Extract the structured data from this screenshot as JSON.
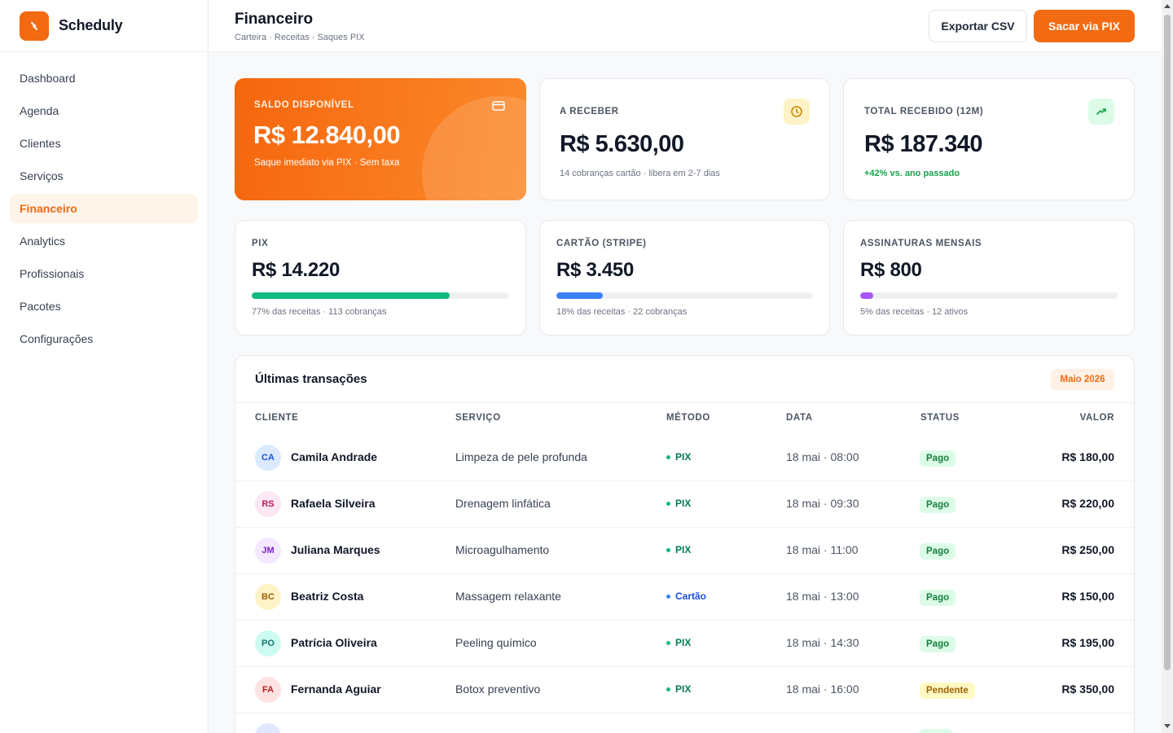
{
  "brand": {
    "name": "Scheduly"
  },
  "sidebar": {
    "items": [
      {
        "label": "Dashboard",
        "active": false
      },
      {
        "label": "Agenda",
        "active": false
      },
      {
        "label": "Clientes",
        "active": false
      },
      {
        "label": "Serviços",
        "active": false
      },
      {
        "label": "Financeiro",
        "active": true
      },
      {
        "label": "Analytics",
        "active": false
      },
      {
        "label": "Profissionais",
        "active": false
      },
      {
        "label": "Pacotes",
        "active": false
      },
      {
        "label": "Configurações",
        "active": false
      }
    ]
  },
  "header": {
    "title": "Financeiro",
    "subtitle": "Carteira · Receitas · Saques PIX",
    "export_label": "Exportar CSV",
    "withdraw_label": "Sacar via PIX"
  },
  "balance": {
    "label": "Saldo disponível",
    "value": "R$ 12.840,00",
    "note": "Saque imediato via PIX · Sem taxa"
  },
  "receivable": {
    "label": "A receber",
    "value": "R$ 5.630,00",
    "note": "14 cobranças cartão · libera em 2-7 dias"
  },
  "total": {
    "label": "Total recebido (12m)",
    "value": "R$ 187.340",
    "note": "+42% vs. ano passado"
  },
  "methods": [
    {
      "label": "PIX",
      "value": "R$ 14.220",
      "share": 0.77,
      "color": "#10b981",
      "note": "77% das receitas · 113 cobranças"
    },
    {
      "label": "Cartão (Stripe)",
      "value": "R$ 3.450",
      "share": 0.18,
      "color": "#3b82f6",
      "note": "18% das receitas · 22 cobranças"
    },
    {
      "label": "Assinaturas mensais",
      "value": "R$ 800",
      "share": 0.05,
      "color": "#a855f7",
      "note": "5% das receitas · 12 ativos"
    }
  ],
  "table": {
    "title": "Últimas transações",
    "month": "Maio 2026",
    "headers": {
      "client": "CLIENTE",
      "service": "SERVIÇO",
      "method": "MÉTODO",
      "date": "DATA",
      "status": "STATUS",
      "value": "VALOR"
    },
    "rows": [
      {
        "initials": "CA",
        "client": "Camila Andrade",
        "service": "Limpeza de pele profunda",
        "method": "PIX",
        "date": "18 mai · 08:00",
        "status": "Pago",
        "value": "R$ 180,00",
        "avatar_bg": "#dbeafe",
        "avatar_fg": "#1d4ed8",
        "method_color": "#10b981",
        "method_text": "#047857",
        "status_bg": "#dcfce7",
        "status_fg": "#15803d"
      },
      {
        "initials": "RS",
        "client": "Rafaela Silveira",
        "service": "Drenagem linfática",
        "method": "PIX",
        "date": "18 mai · 09:30",
        "status": "Pago",
        "value": "R$ 220,00",
        "avatar_bg": "#fce7f3",
        "avatar_fg": "#be185d",
        "method_color": "#10b981",
        "method_text": "#047857",
        "status_bg": "#dcfce7",
        "status_fg": "#15803d"
      },
      {
        "initials": "JM",
        "client": "Juliana Marques",
        "service": "Microagulhamento",
        "method": "PIX",
        "date": "18 mai · 11:00",
        "status": "Pago",
        "value": "R$ 250,00",
        "avatar_bg": "#f3e8ff",
        "avatar_fg": "#7e22ce",
        "method_color": "#10b981",
        "method_text": "#047857",
        "status_bg": "#dcfce7",
        "status_fg": "#15803d"
      },
      {
        "initials": "BC",
        "client": "Beatriz Costa",
        "service": "Massagem relaxante",
        "method": "Cartão",
        "date": "18 mai · 13:00",
        "status": "Pago",
        "value": "R$ 150,00",
        "avatar_bg": "#fef3c7",
        "avatar_fg": "#a16207",
        "method_color": "#3b82f6",
        "method_text": "#1d4ed8",
        "status_bg": "#dcfce7",
        "status_fg": "#15803d"
      },
      {
        "initials": "PO",
        "client": "Patrícia Oliveira",
        "service": "Peeling químico",
        "method": "PIX",
        "date": "18 mai · 14:30",
        "status": "Pago",
        "value": "R$ 195,00",
        "avatar_bg": "#ccfbf1",
        "avatar_fg": "#0f766e",
        "method_color": "#10b981",
        "method_text": "#047857",
        "status_bg": "#dcfce7",
        "status_fg": "#15803d"
      },
      {
        "initials": "FA",
        "client": "Fernanda Aguiar",
        "service": "Botox preventivo",
        "method": "PIX",
        "date": "18 mai · 16:00",
        "status": "Pendente",
        "value": "R$ 350,00",
        "avatar_bg": "#fee2e2",
        "avatar_fg": "#b91c1c",
        "method_color": "#10b981",
        "method_text": "#047857",
        "status_bg": "#fef9c3",
        "status_fg": "#a16207"
      },
      {
        "initials": "",
        "client": "",
        "service": "",
        "method": "",
        "date": "",
        "status": "",
        "value": "",
        "avatar_bg": "#e0e7ff",
        "avatar_fg": "#4338ca",
        "method_color": "#10b981",
        "method_text": "#047857",
        "status_bg": "#dcfce7",
        "status_fg": "#15803d"
      }
    ]
  }
}
